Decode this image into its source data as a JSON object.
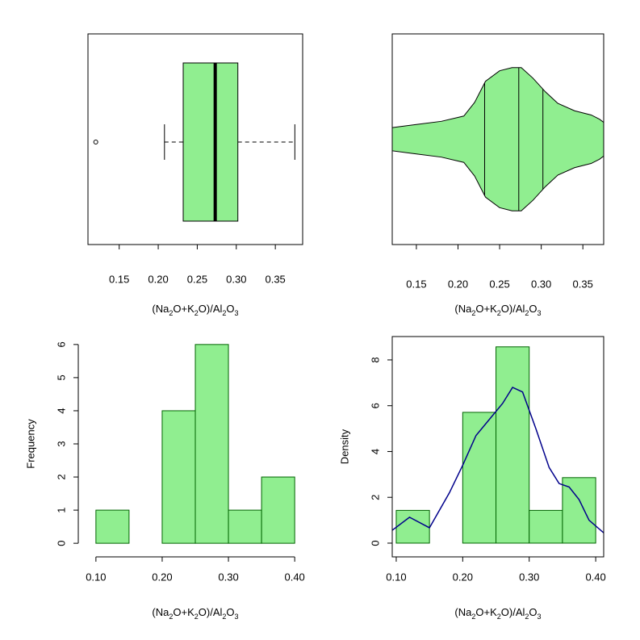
{
  "chart_data": [
    {
      "type": "boxplot",
      "xlabel": "(Na2O+K2O)/Al2O3",
      "frame": true,
      "color": "#90ee90",
      "min": 0.208,
      "q1": 0.232,
      "median": 0.273,
      "q3": 0.302,
      "max": 0.375,
      "outliers": [
        0.12
      ],
      "xlim": [
        0.11,
        0.385
      ],
      "xticks": [
        0.15,
        {
          "value": 0.2,
          "label": "0.20"
        },
        0.25,
        {
          "value": 0.3,
          "label": "0.30"
        },
        0.35
      ]
    },
    {
      "type": "violin",
      "xlabel": "(Na2O+K2O)/Al2O3",
      "frame": true,
      "color": "#90ee90",
      "x": [
        0.121,
        0.15,
        0.18,
        0.207,
        0.22,
        0.233,
        0.25,
        0.265,
        0.276,
        0.29,
        0.305,
        0.32,
        0.34,
        0.36,
        0.37,
        0.375
      ],
      "density": [
        0.11,
        0.14,
        0.17,
        0.22,
        0.35,
        0.55,
        0.65,
        0.68,
        0.68,
        0.58,
        0.45,
        0.34,
        0.27,
        0.23,
        0.19,
        0.16
      ],
      "q1": 0.232,
      "median": 0.273,
      "q3": 0.302,
      "xlim": [
        0.121,
        0.375
      ],
      "ylim": [
        -1,
        1
      ],
      "xticks": [
        0.15,
        {
          "value": 0.2,
          "label": "0.20"
        },
        0.25,
        {
          "value": 0.3,
          "label": "0.30"
        },
        0.35
      ]
    },
    {
      "type": "histogram",
      "xlabel": "(Na2O+K2O)/Al2O3",
      "ylabel": "Frequency",
      "frame": false,
      "color": "#90ee90",
      "bins": [
        0.1,
        0.15,
        0.2,
        0.25,
        0.3,
        0.35,
        0.4
      ],
      "values": [
        1,
        0,
        4,
        6,
        1,
        2
      ],
      "xlim": [
        0.088,
        0.412
      ],
      "ylim": [
        -0.24,
        6.24
      ],
      "xticks": [
        {
          "value": 0.1,
          "label": "0.10"
        },
        {
          "value": 0.2,
          "label": "0.20"
        },
        {
          "value": 0.3,
          "label": "0.30"
        },
        {
          "value": 0.4,
          "label": "0.40"
        }
      ],
      "yticks": [
        0,
        1,
        2,
        3,
        4,
        5,
        6
      ]
    },
    {
      "type": "histogram",
      "xlabel": "(Na2O+K2O)/Al2O3",
      "ylabel": "Density",
      "frame": true,
      "color": "#90ee90",
      "bins": [
        0.1,
        0.15,
        0.2,
        0.25,
        0.3,
        0.35,
        0.4
      ],
      "values": [
        1.43,
        0,
        5.71,
        8.57,
        1.43,
        2.86
      ],
      "density_line": {
        "color": "#00008b",
        "x": [
          0.094,
          0.12,
          0.15,
          0.18,
          0.2,
          0.22,
          0.24,
          0.26,
          0.275,
          0.29,
          0.31,
          0.33,
          0.345,
          0.36,
          0.375,
          0.39,
          0.412
        ],
        "values": [
          0.56,
          1.13,
          0.67,
          2.2,
          3.4,
          4.7,
          5.4,
          6.1,
          6.8,
          6.6,
          5.0,
          3.3,
          2.6,
          2.45,
          1.9,
          1.0,
          0.45
        ]
      },
      "xlim": [
        0.094,
        0.412
      ],
      "ylim": [
        -0.6,
        9.02
      ],
      "xticks": [
        {
          "value": 0.1,
          "label": "0.10"
        },
        {
          "value": 0.2,
          "label": "0.20"
        },
        {
          "value": 0.3,
          "label": "0.30"
        },
        {
          "value": 0.4,
          "label": "0.40"
        }
      ],
      "yticks": [
        0,
        2,
        4,
        6,
        8
      ]
    }
  ]
}
